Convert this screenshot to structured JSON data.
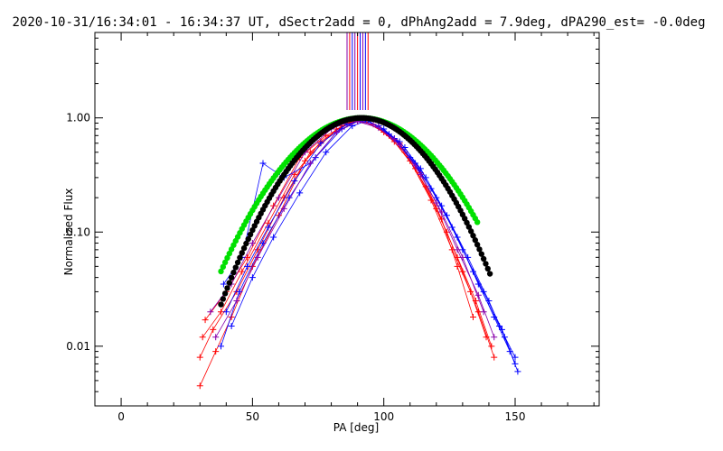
{
  "chart_data": {
    "type": "line",
    "title": "2020-10-31/16:34:01 - 16:34:37 UT, dSectr2add = 0, dPhAng2add = 7.9deg, dPA290_est= -0.0deg",
    "xlabel": "PA [deg]",
    "ylabel": "Normalized Flux",
    "xlim": [
      -10,
      182
    ],
    "ylim": [
      0.003,
      5.6
    ],
    "yscale": "log",
    "xticks": [
      0,
      50,
      100,
      150
    ],
    "xtick_labels": [
      "0",
      "50",
      "100",
      "150"
    ],
    "yticks": [
      0.01,
      0.1,
      1.0
    ],
    "ytick_labels": [
      "0.01",
      "0.10",
      "1.00"
    ],
    "grid": false,
    "legend": "none",
    "colors": {
      "red": "#ff0000",
      "blue": "#0000ff",
      "purple": "#8800aa",
      "green": "#00e000",
      "black": "#000000"
    },
    "series": [
      {
        "color": "#ff0000",
        "x": [
          30,
          35,
          44,
          52,
          62,
          72,
          84,
          92,
          100,
          108,
          116,
          124,
          130,
          136,
          142
        ],
        "y": [
          0.008,
          0.014,
          0.03,
          0.07,
          0.2,
          0.5,
          0.85,
          0.95,
          0.75,
          0.5,
          0.25,
          0.1,
          0.045,
          0.02,
          0.008
        ]
      },
      {
        "color": "#ff0000",
        "x": [
          31,
          38,
          46,
          56,
          66,
          76,
          86,
          92,
          102,
          110,
          118,
          126,
          133,
          139
        ],
        "y": [
          0.012,
          0.02,
          0.045,
          0.12,
          0.32,
          0.62,
          0.9,
          0.97,
          0.7,
          0.42,
          0.19,
          0.07,
          0.03,
          0.012
        ]
      },
      {
        "color": "#ff0000",
        "x": [
          30,
          36,
          42,
          50,
          60,
          70,
          82,
          90,
          98,
          106,
          114,
          122,
          128,
          134
        ],
        "y": [
          0.0045,
          0.009,
          0.018,
          0.05,
          0.14,
          0.42,
          0.8,
          0.94,
          0.85,
          0.6,
          0.33,
          0.13,
          0.05,
          0.018
        ]
      },
      {
        "color": "#ff0000",
        "x": [
          32,
          40,
          48,
          58,
          68,
          78,
          88,
          94,
          104,
          112,
          120,
          128,
          135,
          141
        ],
        "y": [
          0.017,
          0.03,
          0.06,
          0.17,
          0.45,
          0.7,
          0.92,
          0.96,
          0.62,
          0.36,
          0.16,
          0.06,
          0.025,
          0.01
        ]
      },
      {
        "color": "#0000ff",
        "x": [
          38,
          45,
          54,
          64,
          74,
          84,
          92,
          100,
          108,
          116,
          124,
          132,
          140,
          146,
          151
        ],
        "y": [
          0.01,
          0.03,
          0.08,
          0.2,
          0.45,
          0.8,
          0.98,
          0.8,
          0.55,
          0.3,
          0.14,
          0.06,
          0.025,
          0.012,
          0.006
        ]
      },
      {
        "color": "#0000ff",
        "x": [
          40,
          48,
          56,
          66,
          76,
          86,
          93,
          102,
          110,
          118,
          126,
          134,
          142,
          148
        ],
        "y": [
          0.02,
          0.05,
          0.11,
          0.28,
          0.6,
          0.88,
          0.97,
          0.72,
          0.45,
          0.24,
          0.11,
          0.045,
          0.018,
          0.009
        ]
      },
      {
        "color": "#0000ff",
        "x": [
          39,
          46,
          54,
          62,
          72,
          82,
          90,
          98,
          106,
          114,
          122,
          130,
          138,
          145,
          150
        ],
        "y": [
          0.035,
          0.06,
          0.4,
          0.3,
          0.4,
          0.75,
          0.95,
          0.85,
          0.62,
          0.36,
          0.17,
          0.07,
          0.03,
          0.014,
          0.007
        ]
      },
      {
        "color": "#0000ff",
        "x": [
          42,
          50,
          58,
          68,
          78,
          88,
          94,
          104,
          112,
          120,
          128,
          136,
          144,
          150
        ],
        "y": [
          0.015,
          0.04,
          0.09,
          0.22,
          0.5,
          0.85,
          0.95,
          0.66,
          0.4,
          0.2,
          0.09,
          0.035,
          0.015,
          0.008
        ]
      },
      {
        "color": "#8800aa",
        "x": [
          36,
          44,
          52,
          62,
          72,
          82,
          90,
          98,
          106,
          114,
          122,
          130,
          138
        ],
        "y": [
          0.012,
          0.025,
          0.06,
          0.16,
          0.4,
          0.75,
          0.93,
          0.82,
          0.58,
          0.32,
          0.15,
          0.06,
          0.02
        ]
      },
      {
        "color": "#8800aa",
        "x": [
          34,
          42,
          50,
          60,
          70,
          80,
          88,
          96,
          104,
          112,
          120,
          128,
          136,
          142
        ],
        "y": [
          0.02,
          0.035,
          0.08,
          0.2,
          0.5,
          0.8,
          0.95,
          0.88,
          0.65,
          0.38,
          0.18,
          0.07,
          0.028,
          0.012
        ]
      }
    ],
    "model_curves": [
      {
        "color": "#00e000",
        "center": 91.5,
        "sigma": 21.5,
        "xrange": [
          38,
          136
        ],
        "step": 0.8
      },
      {
        "color": "#000000",
        "center": 91.5,
        "sigma": 19.5,
        "xrange": [
          38,
          141
        ],
        "step": 0.8
      }
    ],
    "peak_markers": {
      "x": [
        86,
        87,
        88,
        89,
        90,
        91,
        92,
        93,
        94
      ],
      "colors": [
        "#8800aa",
        "#ff0000",
        "#0000ff",
        "#8800aa",
        "#ff0000",
        "#0000ff",
        "#8800aa",
        "#0000ff",
        "#ff0000"
      ]
    }
  }
}
